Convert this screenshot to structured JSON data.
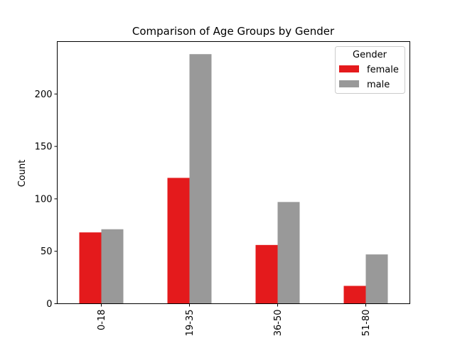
{
  "chart_data": {
    "type": "bar",
    "title": "Comparison of Age Groups by Gender",
    "xlabel": "",
    "ylabel": "Count",
    "categories": [
      "0-18",
      "19-35",
      "36-50",
      "51-80"
    ],
    "series": [
      {
        "name": "female",
        "values": [
          68,
          120,
          56,
          17
        ],
        "color": "#e41a1c"
      },
      {
        "name": "male",
        "values": [
          71,
          238,
          97,
          47
        ],
        "color": "#999999"
      }
    ],
    "ylim": [
      0,
      250
    ],
    "yticks": [
      0,
      50,
      100,
      150,
      200
    ],
    "grid": false,
    "legend": {
      "title": "Gender",
      "placement": "top-right"
    },
    "x_tick_rotation": "vertical"
  }
}
